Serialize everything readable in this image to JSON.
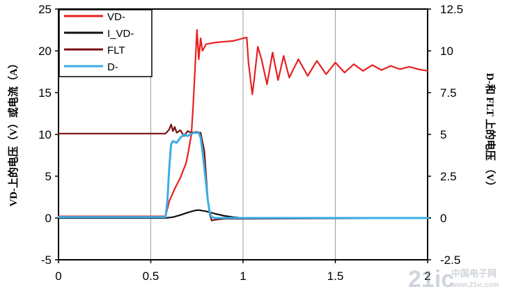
{
  "chart_data": {
    "type": "line",
    "title": "",
    "xlabel": "",
    "ylabel_left": "VD-上的电压（V）或电流（A）",
    "ylabel_right": "D-和 FLT 上的电压 （V）",
    "xlim": [
      0,
      2
    ],
    "ylim_left": [
      -5,
      25
    ],
    "ylim_right": [
      -2.5,
      12.5
    ],
    "x_ticks": [
      "0",
      "0.5",
      "1",
      "1.5",
      "2"
    ],
    "y_left_ticks": [
      "-5",
      "0",
      "5",
      "10",
      "15",
      "20",
      "25"
    ],
    "y_right_ticks": [
      "-2.5",
      "0",
      "2.5",
      "5",
      "7.5",
      "10",
      "12.5"
    ],
    "grid": "vertical",
    "legend_position": "top-left",
    "series": [
      {
        "name": "VD-",
        "color": "#e8201f",
        "axis": "left",
        "x": [
          0,
          0.58,
          0.6,
          0.63,
          0.66,
          0.69,
          0.7,
          0.72,
          0.73,
          0.74,
          0.75,
          0.76,
          0.77,
          0.78,
          0.8,
          0.85,
          0.9,
          0.95,
          1.0,
          1.02,
          1.03,
          1.05,
          1.06,
          1.08,
          1.1,
          1.13,
          1.16,
          1.19,
          1.22,
          1.25,
          1.3,
          1.35,
          1.4,
          1.45,
          1.5,
          1.55,
          1.6,
          1.65,
          1.7,
          1.75,
          1.8,
          1.85,
          1.9,
          1.95,
          2.0
        ],
        "y": [
          0.2,
          0.2,
          2.0,
          3.5,
          4.8,
          6.5,
          7.5,
          10.0,
          13.5,
          18.0,
          22.5,
          19.0,
          21.5,
          20.0,
          20.8,
          21.0,
          21.1,
          21.2,
          21.5,
          21.6,
          18.5,
          14.8,
          16.5,
          20.5,
          19.0,
          16.0,
          19.8,
          16.5,
          19.4,
          16.8,
          19.0,
          17.0,
          18.8,
          17.2,
          18.6,
          17.4,
          18.4,
          17.6,
          18.3,
          17.7,
          18.2,
          17.8,
          18.1,
          17.8,
          17.6
        ]
      },
      {
        "name": "I_VD-",
        "color": "#111111",
        "axis": "left",
        "x": [
          0,
          0.58,
          0.62,
          0.66,
          0.7,
          0.74,
          0.76,
          0.8,
          0.85,
          0.9,
          0.95,
          1.0,
          2.0
        ],
        "y": [
          0,
          0,
          0.1,
          0.35,
          0.65,
          0.9,
          0.95,
          0.8,
          0.5,
          0.25,
          0.1,
          0.0,
          0.0
        ]
      },
      {
        "name": "FLT",
        "color": "#7a0f10",
        "axis": "right",
        "x": [
          0,
          0.58,
          0.6,
          0.61,
          0.62,
          0.63,
          0.64,
          0.66,
          0.68,
          0.7,
          0.72,
          0.75,
          0.77,
          0.79,
          0.8,
          0.81,
          0.82,
          0.83,
          0.85,
          0.9,
          1.0,
          2.0
        ],
        "y": [
          5.05,
          5.05,
          5.3,
          5.6,
          5.2,
          5.45,
          5.1,
          5.25,
          4.9,
          5.2,
          5.1,
          5.15,
          5.1,
          4.0,
          2.5,
          1.0,
          0.2,
          -0.15,
          -0.1,
          -0.05,
          -0.05,
          0.0
        ]
      },
      {
        "name": "D-",
        "color": "#3aaee6",
        "axis": "right",
        "x": [
          0,
          0.58,
          0.59,
          0.6,
          0.61,
          0.62,
          0.64,
          0.66,
          0.68,
          0.7,
          0.72,
          0.74,
          0.76,
          0.77,
          0.78,
          0.79,
          0.8,
          0.81,
          0.82,
          0.83,
          0.85,
          1.0,
          2.0
        ],
        "y": [
          0.05,
          0.05,
          1.0,
          3.0,
          4.4,
          4.6,
          4.5,
          4.8,
          5.0,
          4.9,
          5.05,
          5.1,
          5.1,
          4.8,
          4.0,
          3.0,
          2.0,
          1.0,
          0.3,
          0.05,
          0.0,
          0.0,
          0.0
        ]
      }
    ]
  },
  "watermark": {
    "text_main": "21ic",
    "text_sub": "中国电子网",
    "text_url": "www.21ic.com"
  }
}
